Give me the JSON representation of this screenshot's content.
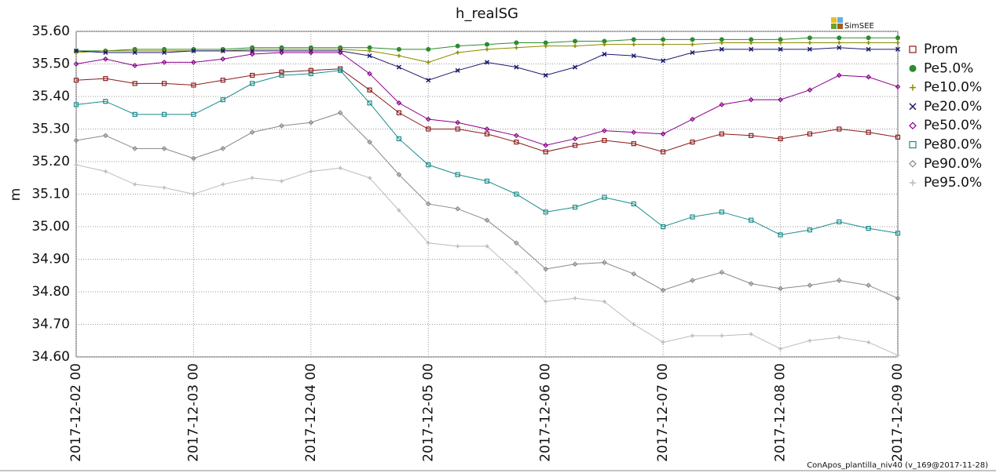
{
  "chart_data": {
    "type": "line",
    "title": "h_realSG",
    "y_label": "m",
    "logo": "SimSEE",
    "footer": "ConApos_plantilla_niv40 (v_169@2017-11-28)",
    "categories": [
      "2017-12-02 00",
      null,
      null,
      null,
      "2017-12-03 00",
      null,
      null,
      null,
      "2017-12-04 00",
      null,
      null,
      null,
      "2017-12-05 00",
      null,
      null,
      null,
      "2017-12-06 00",
      null,
      null,
      null,
      "2017-12-07 00",
      null,
      null,
      null,
      "2017-12-08 00",
      null,
      null,
      null,
      "2017-12-09 00"
    ],
    "ylim": [
      34.6,
      35.6
    ],
    "yticks": [
      {
        "value": 34.6,
        "label": "34.60"
      },
      {
        "value": 34.7,
        "label": "34.70"
      },
      {
        "value": 34.8,
        "label": "34.80"
      },
      {
        "value": 34.9,
        "label": "34.90"
      },
      {
        "value": 35.0,
        "label": "35.00"
      },
      {
        "value": 35.1,
        "label": "35.10"
      },
      {
        "value": 35.2,
        "label": "35.20"
      },
      {
        "value": 35.3,
        "label": "35.30"
      },
      {
        "value": 35.4,
        "label": "35.40"
      },
      {
        "value": 35.5,
        "label": "35.50"
      },
      {
        "value": 35.6,
        "label": "35.60"
      }
    ],
    "grid": true,
    "legend": "right",
    "series": [
      {
        "name": "Prom",
        "color": "#8b1a1a",
        "marker": "square",
        "values": [
          35.45,
          35.455,
          35.44,
          35.44,
          35.435,
          35.45,
          35.465,
          35.475,
          35.48,
          35.485,
          35.42,
          35.35,
          35.3,
          35.3,
          35.285,
          35.26,
          35.23,
          35.25,
          35.265,
          35.255,
          35.23,
          35.26,
          35.285,
          35.28,
          35.27,
          35.285,
          35.3,
          35.29,
          35.275
        ]
      },
      {
        "name": "Pe5.0%",
        "color": "#2e8b2e",
        "marker": "circle",
        "values": [
          35.54,
          35.54,
          35.545,
          35.545,
          35.545,
          35.545,
          35.55,
          35.55,
          35.55,
          35.55,
          35.55,
          35.545,
          35.545,
          35.555,
          35.56,
          35.565,
          35.565,
          35.57,
          35.57,
          35.575,
          35.575,
          35.575,
          35.575,
          35.575,
          35.575,
          35.58,
          35.58,
          35.58,
          35.58
        ]
      },
      {
        "name": "Pe10.0%",
        "color": "#8b8b00",
        "marker": "plus",
        "values": [
          35.535,
          35.54,
          35.54,
          35.54,
          35.54,
          35.54,
          35.545,
          35.545,
          35.545,
          35.545,
          35.54,
          35.525,
          35.505,
          35.535,
          35.545,
          35.55,
          35.555,
          35.555,
          35.56,
          35.56,
          35.56,
          35.56,
          35.565,
          35.565,
          35.565,
          35.565,
          35.565,
          35.565,
          35.565
        ]
      },
      {
        "name": "Pe20.0%",
        "color": "#1a1a6e",
        "marker": "cross",
        "values": [
          35.54,
          35.535,
          35.535,
          35.535,
          35.54,
          35.54,
          35.54,
          35.54,
          35.54,
          35.54,
          35.525,
          35.49,
          35.45,
          35.48,
          35.505,
          35.49,
          35.465,
          35.49,
          35.53,
          35.525,
          35.51,
          35.535,
          35.545,
          35.545,
          35.545,
          35.545,
          35.55,
          35.545,
          35.545
        ]
      },
      {
        "name": "Pe50.0%",
        "color": "#8b008b",
        "marker": "diamond",
        "values": [
          35.5,
          35.515,
          35.495,
          35.505,
          35.505,
          35.515,
          35.53,
          35.535,
          35.535,
          35.535,
          35.47,
          35.38,
          35.33,
          35.32,
          35.3,
          35.28,
          35.25,
          35.27,
          35.295,
          35.29,
          35.285,
          35.33,
          35.375,
          35.39,
          35.39,
          35.42,
          35.465,
          35.46,
          35.43
        ]
      },
      {
        "name": "Pe80.0%",
        "color": "#1a8b8b",
        "marker": "square",
        "values": [
          35.375,
          35.385,
          35.345,
          35.345,
          35.345,
          35.39,
          35.44,
          35.465,
          35.47,
          35.48,
          35.38,
          35.27,
          35.19,
          35.16,
          35.14,
          35.1,
          35.045,
          35.06,
          35.09,
          35.07,
          35.0,
          35.03,
          35.045,
          35.02,
          34.975,
          34.99,
          35.015,
          34.995,
          34.98
        ]
      },
      {
        "name": "Pe90.0%",
        "color": "#888888",
        "marker": "diamond",
        "values": [
          35.265,
          35.28,
          35.24,
          35.24,
          35.21,
          35.24,
          35.29,
          35.31,
          35.32,
          35.35,
          35.26,
          35.16,
          35.07,
          35.055,
          35.02,
          34.95,
          34.87,
          34.885,
          34.89,
          34.855,
          34.805,
          34.835,
          34.86,
          34.825,
          34.81,
          34.82,
          34.835,
          34.82,
          34.78
        ]
      },
      {
        "name": "Pe95.0%",
        "color": "#bbbbbb",
        "marker": "plus",
        "values": [
          35.19,
          35.17,
          35.13,
          35.12,
          35.1,
          35.13,
          35.15,
          35.14,
          35.17,
          35.18,
          35.15,
          35.05,
          34.95,
          34.94,
          34.94,
          34.86,
          34.77,
          34.78,
          34.77,
          34.7,
          34.645,
          34.665,
          34.665,
          34.67,
          34.625,
          34.65,
          34.66,
          34.645,
          34.605
        ]
      }
    ]
  }
}
